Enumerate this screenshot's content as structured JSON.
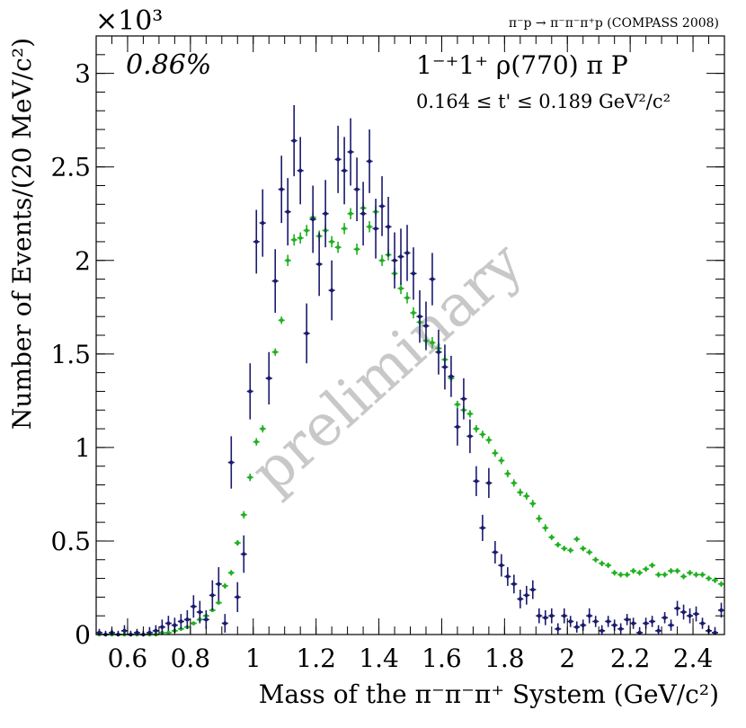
{
  "chart_data": {
    "type": "scatter",
    "header": "π⁻p → π⁻π⁻π⁺p (COMPASS 2008)",
    "y_scale_label": "×10³",
    "title": "1⁻⁺1⁺ ρ(770) π P",
    "subtitle": "0.164 ≤ t' ≤ 0.189 GeV²/c²",
    "intensity_label": "0.86%",
    "watermark": "preliminary",
    "xlabel": "Mass of the π⁻π⁻π⁺ System (GeV/c²)",
    "ylabel": "Number of Events/(20 MeV/c²)",
    "xlim": [
      0.5,
      2.5
    ],
    "ylim": [
      0,
      3.2
    ],
    "x_ticks": [
      0.6,
      0.8,
      1.0,
      1.2,
      1.4,
      1.6,
      1.8,
      2.0,
      2.2,
      2.4
    ],
    "x_tick_labels": [
      "0.6",
      "0.8",
      "1",
      "1.2",
      "1.4",
      "1.6",
      "1.8",
      "2",
      "2.2",
      "2.4"
    ],
    "y_ticks": [
      0,
      0.5,
      1.0,
      1.5,
      2.0,
      2.5,
      3.0
    ],
    "y_tick_labels": [
      "0",
      "0.5",
      "1",
      "1.5",
      "2",
      "2.5",
      "3"
    ],
    "colors": {
      "series1": "#1a1a6e",
      "series2": "#20b020",
      "axis": "#000000",
      "watermark": "#c8c8c8"
    },
    "series": [
      {
        "name": "navy",
        "x": [
          0.51,
          0.53,
          0.55,
          0.57,
          0.59,
          0.61,
          0.63,
          0.65,
          0.67,
          0.69,
          0.71,
          0.73,
          0.75,
          0.77,
          0.79,
          0.81,
          0.83,
          0.85,
          0.87,
          0.89,
          0.91,
          0.93,
          0.95,
          0.97,
          0.99,
          1.01,
          1.03,
          1.05,
          1.07,
          1.09,
          1.11,
          1.13,
          1.15,
          1.17,
          1.19,
          1.21,
          1.23,
          1.25,
          1.27,
          1.29,
          1.31,
          1.33,
          1.35,
          1.37,
          1.39,
          1.41,
          1.43,
          1.45,
          1.47,
          1.49,
          1.51,
          1.53,
          1.55,
          1.57,
          1.59,
          1.61,
          1.63,
          1.65,
          1.67,
          1.69,
          1.71,
          1.73,
          1.75,
          1.77,
          1.79,
          1.81,
          1.83,
          1.85,
          1.87,
          1.89,
          1.91,
          1.93,
          1.95,
          1.97,
          1.99,
          2.01,
          2.03,
          2.05,
          2.07,
          2.09,
          2.11,
          2.13,
          2.15,
          2.17,
          2.19,
          2.21,
          2.23,
          2.25,
          2.27,
          2.29,
          2.31,
          2.33,
          2.35,
          2.37,
          2.39,
          2.41,
          2.43,
          2.45,
          2.47,
          2.49
        ],
        "y": [
          0.01,
          0.0,
          0.01,
          0.0,
          0.02,
          0.0,
          0.01,
          0.0,
          0.01,
          0.02,
          0.04,
          0.06,
          0.05,
          0.07,
          0.08,
          0.15,
          0.12,
          0.08,
          0.21,
          0.27,
          0.06,
          0.92,
          0.2,
          0.43,
          1.3,
          2.1,
          2.2,
          1.37,
          1.89,
          2.38,
          2.26,
          2.64,
          2.48,
          1.61,
          2.22,
          1.98,
          2.25,
          1.84,
          2.54,
          2.48,
          2.58,
          2.38,
          2.25,
          2.53,
          2.17,
          2.29,
          2.18,
          2.0,
          2.02,
          2.04,
          1.93,
          1.7,
          1.65,
          1.9,
          1.51,
          1.43,
          1.38,
          1.11,
          1.26,
          1.06,
          0.82,
          0.57,
          0.81,
          0.44,
          0.37,
          0.31,
          0.27,
          0.19,
          0.21,
          0.24,
          0.1,
          0.09,
          0.1,
          0.03,
          0.1,
          0.07,
          0.04,
          0.05,
          0.1,
          0.07,
          0.02,
          0.07,
          0.05,
          0.03,
          0.08,
          0.06,
          0.01,
          0.06,
          0.07,
          0.02,
          0.09,
          0.05,
          0.14,
          0.12,
          0.1,
          0.11,
          0.06,
          0.02,
          0.01,
          0.13
        ],
        "err": [
          0.02,
          0.02,
          0.02,
          0.02,
          0.03,
          0.02,
          0.02,
          0.02,
          0.03,
          0.03,
          0.04,
          0.04,
          0.04,
          0.04,
          0.05,
          0.06,
          0.06,
          0.05,
          0.08,
          0.09,
          0.05,
          0.14,
          0.08,
          0.1,
          0.15,
          0.17,
          0.18,
          0.14,
          0.17,
          0.18,
          0.18,
          0.19,
          0.18,
          0.16,
          0.18,
          0.17,
          0.18,
          0.16,
          0.18,
          0.18,
          0.18,
          0.17,
          0.17,
          0.17,
          0.16,
          0.16,
          0.16,
          0.15,
          0.15,
          0.15,
          0.14,
          0.14,
          0.13,
          0.14,
          0.12,
          0.12,
          0.11,
          0.1,
          0.11,
          0.09,
          0.08,
          0.07,
          0.08,
          0.06,
          0.06,
          0.05,
          0.05,
          0.05,
          0.05,
          0.05,
          0.04,
          0.04,
          0.04,
          0.03,
          0.04,
          0.03,
          0.03,
          0.03,
          0.04,
          0.03,
          0.03,
          0.03,
          0.03,
          0.03,
          0.03,
          0.03,
          0.03,
          0.03,
          0.03,
          0.03,
          0.03,
          0.03,
          0.04,
          0.04,
          0.04,
          0.04,
          0.03,
          0.03,
          0.03,
          0.04
        ]
      },
      {
        "name": "green",
        "x": [
          0.51,
          0.53,
          0.55,
          0.57,
          0.59,
          0.61,
          0.63,
          0.65,
          0.67,
          0.69,
          0.71,
          0.73,
          0.75,
          0.77,
          0.79,
          0.81,
          0.83,
          0.85,
          0.87,
          0.89,
          0.91,
          0.93,
          0.95,
          0.97,
          0.99,
          1.01,
          1.03,
          1.05,
          1.07,
          1.09,
          1.11,
          1.13,
          1.15,
          1.17,
          1.19,
          1.21,
          1.23,
          1.25,
          1.27,
          1.29,
          1.31,
          1.33,
          1.35,
          1.37,
          1.39,
          1.41,
          1.43,
          1.45,
          1.47,
          1.49,
          1.51,
          1.53,
          1.55,
          1.57,
          1.59,
          1.61,
          1.63,
          1.65,
          1.67,
          1.69,
          1.71,
          1.73,
          1.75,
          1.77,
          1.79,
          1.81,
          1.83,
          1.85,
          1.87,
          1.89,
          1.91,
          1.93,
          1.95,
          1.97,
          1.99,
          2.01,
          2.03,
          2.05,
          2.07,
          2.09,
          2.11,
          2.13,
          2.15,
          2.17,
          2.19,
          2.21,
          2.23,
          2.25,
          2.27,
          2.29,
          2.31,
          2.33,
          2.35,
          2.37,
          2.39,
          2.41,
          2.43,
          2.45,
          2.47,
          2.49
        ],
        "y": [
          0.0,
          0.0,
          0.0,
          0.0,
          0.0,
          0.0,
          0.0,
          0.0,
          0.0,
          0.0,
          0.01,
          0.01,
          0.02,
          0.03,
          0.04,
          0.06,
          0.08,
          0.1,
          0.13,
          0.17,
          0.26,
          0.33,
          0.49,
          0.64,
          0.84,
          1.03,
          1.1,
          1.37,
          1.51,
          1.68,
          2.0,
          2.11,
          2.12,
          2.16,
          2.23,
          2.13,
          2.16,
          2.1,
          2.07,
          2.17,
          2.25,
          2.06,
          2.28,
          2.18,
          2.26,
          2.0,
          2.03,
          1.93,
          1.85,
          1.8,
          1.72,
          1.67,
          1.57,
          1.56,
          1.53,
          1.47,
          1.37,
          1.23,
          1.2,
          1.18,
          1.1,
          1.07,
          1.04,
          0.97,
          0.93,
          0.86,
          0.81,
          0.76,
          0.74,
          0.7,
          0.62,
          0.57,
          0.52,
          0.48,
          0.46,
          0.45,
          0.51,
          0.46,
          0.44,
          0.4,
          0.38,
          0.37,
          0.33,
          0.32,
          0.32,
          0.34,
          0.33,
          0.35,
          0.37,
          0.32,
          0.32,
          0.34,
          0.34,
          0.31,
          0.33,
          0.32,
          0.32,
          0.3,
          0.29,
          0.27
        ],
        "err": [
          0.0,
          0.0,
          0.0,
          0.0,
          0.0,
          0.0,
          0.0,
          0.0,
          0.0,
          0.0,
          0.005,
          0.005,
          0.005,
          0.005,
          0.005,
          0.01,
          0.01,
          0.01,
          0.01,
          0.01,
          0.015,
          0.015,
          0.015,
          0.02,
          0.02,
          0.02,
          0.02,
          0.02,
          0.02,
          0.02,
          0.03,
          0.03,
          0.03,
          0.03,
          0.03,
          0.03,
          0.03,
          0.03,
          0.03,
          0.03,
          0.03,
          0.03,
          0.03,
          0.03,
          0.03,
          0.03,
          0.03,
          0.03,
          0.03,
          0.03,
          0.03,
          0.03,
          0.03,
          0.03,
          0.03,
          0.03,
          0.02,
          0.02,
          0.02,
          0.02,
          0.02,
          0.02,
          0.02,
          0.02,
          0.02,
          0.02,
          0.02,
          0.02,
          0.02,
          0.02,
          0.02,
          0.02,
          0.015,
          0.015,
          0.015,
          0.015,
          0.015,
          0.015,
          0.015,
          0.015,
          0.015,
          0.015,
          0.015,
          0.015,
          0.015,
          0.015,
          0.015,
          0.015,
          0.015,
          0.015,
          0.015,
          0.015,
          0.015,
          0.015,
          0.015,
          0.015,
          0.015,
          0.015,
          0.015,
          0.015
        ]
      }
    ]
  }
}
